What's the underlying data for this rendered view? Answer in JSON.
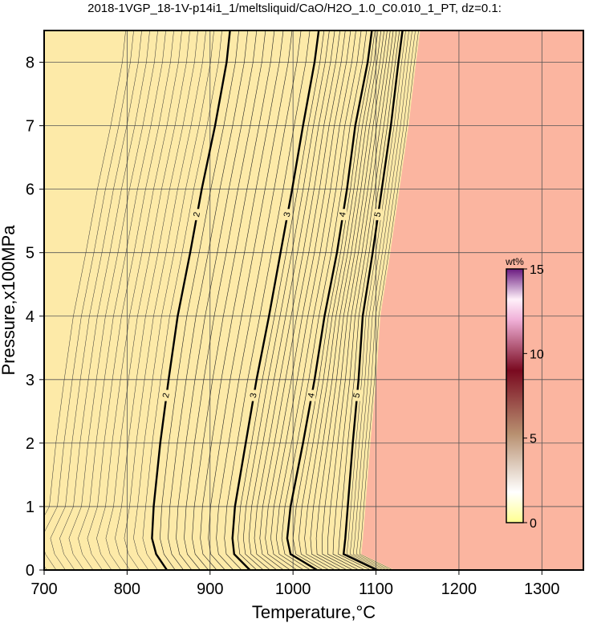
{
  "chart_data": {
    "type": "contour",
    "title": "2018-1VGP_18-1V-p14i1_1/meltsliquid/CaO/H2O_1.0_C0.010_1_PT, dz=0.1:",
    "xlabel": "Temperature,°C",
    "ylabel": "Pressure,x100MPa",
    "xlim": [
      700,
      1350
    ],
    "ylim": [
      0,
      8.5
    ],
    "xticks": [
      700,
      800,
      900,
      1000,
      1100,
      1200,
      1300
    ],
    "yticks": [
      0,
      1,
      2,
      3,
      4,
      5,
      6,
      7,
      8
    ],
    "grid": true,
    "pressures": [
      0,
      0.25,
      0.5,
      1,
      2,
      3,
      4,
      5,
      6,
      7,
      8,
      8.5
    ],
    "contours": [
      {
        "level": 2,
        "x": [
          848,
          835,
          830,
          832,
          840,
          850,
          861,
          876,
          890,
          906,
          920,
          924
        ]
      },
      {
        "level": 3,
        "x": [
          948,
          929,
          927,
          930,
          943,
          956,
          971,
          985,
          999,
          1012,
          1026,
          1031
        ]
      },
      {
        "level": 4,
        "x": [
          1029,
          997,
          993,
          997,
          1012,
          1026,
          1038,
          1053,
          1065,
          1075,
          1090,
          1095
        ]
      },
      {
        "level": 5,
        "x": [
          1101,
          1061,
          1063,
          1066,
          1072,
          1079,
          1084,
          1096,
          1107,
          1118,
          1127,
          1132
        ]
      }
    ],
    "colorbar": {
      "title": "wt%",
      "lim": [
        0,
        15
      ],
      "ticks": [
        0,
        5,
        10,
        15
      ]
    }
  }
}
